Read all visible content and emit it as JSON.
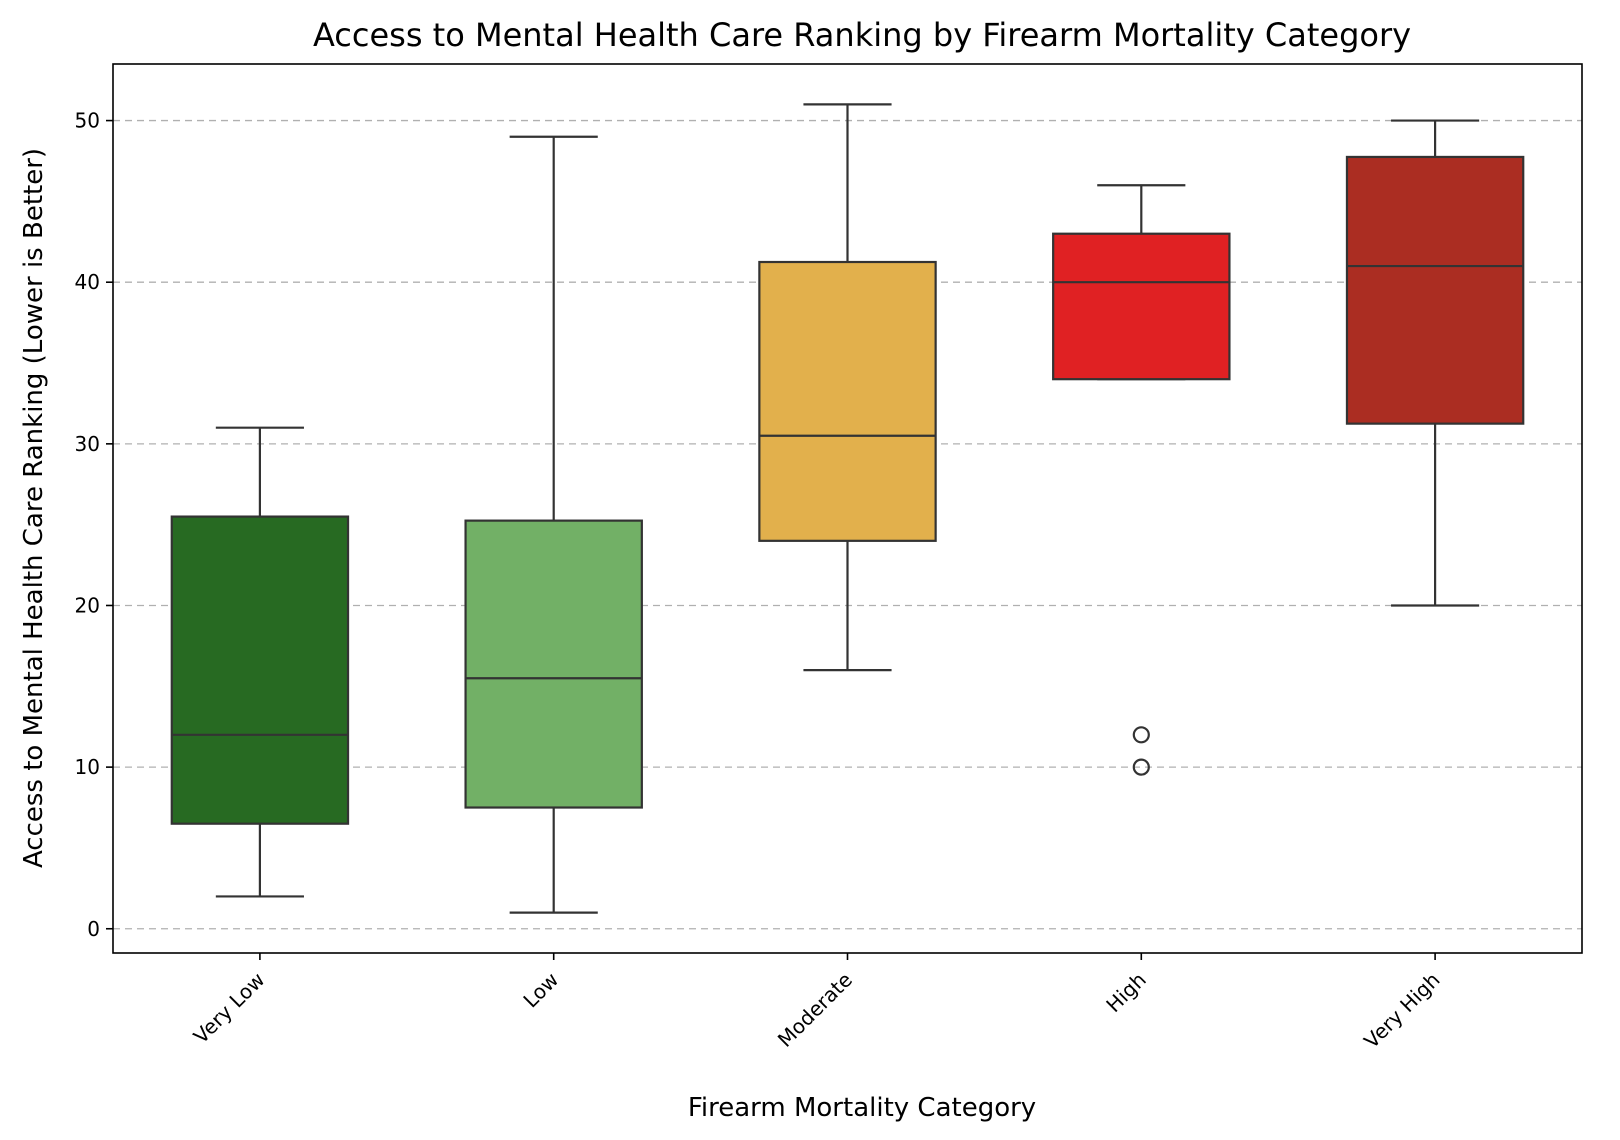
{
  "chart_data": {
    "type": "box",
    "title": "Access to Mental Health Care Ranking by Firearm Mortality Category",
    "xlabel": "Firearm Mortality Category",
    "ylabel": "Access to Mental Health Care Ranking (Lower is Better)",
    "categories": [
      "Very Low",
      "Low",
      "Moderate",
      "High",
      "Very High"
    ],
    "yticks": [
      0,
      10,
      20,
      30,
      40,
      50
    ],
    "ylim": [
      -1.5,
      53.5
    ],
    "grid": "y-dashed",
    "boxes": [
      {
        "category": "Very Low",
        "whisker_low": 2,
        "q1": 6.5,
        "median": 12,
        "q3": 25.5,
        "whisker_high": 31,
        "outliers": [],
        "color": "#276a22"
      },
      {
        "category": "Low",
        "whisker_low": 1,
        "q1": 7.5,
        "median": 15.5,
        "q3": 25.25,
        "whisker_high": 49,
        "outliers": [],
        "color": "#72b066"
      },
      {
        "category": "Moderate",
        "whisker_low": 16,
        "q1": 24,
        "median": 30.5,
        "q3": 41.25,
        "whisker_high": 51,
        "outliers": [],
        "color": "#e2b04c"
      },
      {
        "category": "High",
        "whisker_low": 34,
        "q1": 34,
        "median": 40,
        "q3": 43,
        "whisker_high": 46,
        "outliers": [
          10,
          12
        ],
        "color": "#e02123"
      },
      {
        "category": "Very High",
        "whisker_low": 20,
        "q1": 31.25,
        "median": 41,
        "q3": 47.75,
        "whisker_high": 50,
        "outliers": [],
        "color": "#ab2d22"
      }
    ]
  }
}
